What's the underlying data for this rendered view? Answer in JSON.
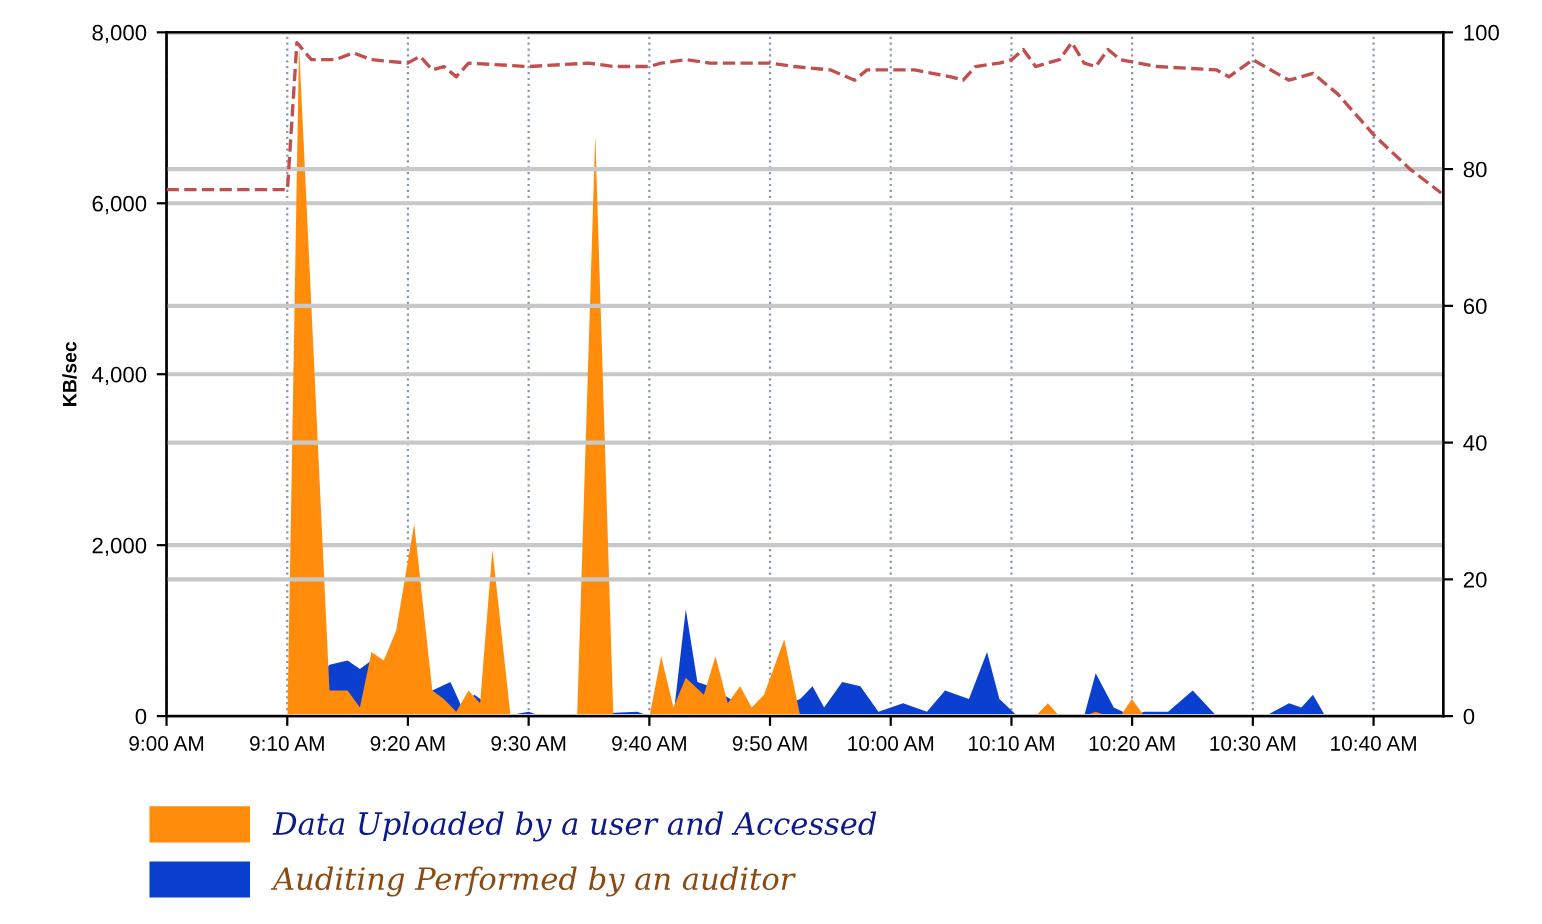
{
  "chart_data": {
    "type": "area",
    "ylabel": "KB/sec",
    "xlim": [
      9,
      10.763
    ],
    "xticks": [
      {
        "value": 9,
        "label": "9:00 AM"
      },
      {
        "value": 9.1667,
        "label": "9:10 AM"
      },
      {
        "value": 9.3333,
        "label": "9:20 AM"
      },
      {
        "value": 9.5,
        "label": "9:30 AM"
      },
      {
        "value": 9.6667,
        "label": "9:40 AM"
      },
      {
        "value": 9.8333,
        "label": "9:50 AM"
      },
      {
        "value": 10,
        "label": "10:00 AM"
      },
      {
        "value": 10.1667,
        "label": "10:10 AM"
      },
      {
        "value": 10.3333,
        "label": "10:20 AM"
      },
      {
        "value": 10.5,
        "label": "10:30 AM"
      },
      {
        "value": 10.6667,
        "label": "10:40 AM"
      }
    ],
    "ylim": [
      0,
      8000
    ],
    "yticks": [
      {
        "value": 0,
        "label": "0"
      },
      {
        "value": 2000,
        "label": "2,000"
      },
      {
        "value": 4000,
        "label": "4,000"
      },
      {
        "value": 6000,
        "label": "6,000"
      },
      {
        "value": 8000,
        "label": "8,000"
      }
    ],
    "y2lim": [
      0,
      100
    ],
    "y2ticks": [
      0,
      20,
      40,
      60,
      80,
      100
    ],
    "grid": true,
    "legend": "bottom left",
    "series": [
      {
        "name": "Auditing Performed by an auditor",
        "color": "#0a3fd0",
        "x": [
          9.167,
          9.225,
          9.25,
          9.267,
          9.283,
          9.367,
          9.392,
          9.408,
          9.425,
          9.467,
          9.5,
          9.517,
          9.65,
          9.667,
          9.7,
          9.717,
          9.733,
          9.75,
          9.817,
          9.875,
          9.892,
          9.908,
          9.933,
          9.958,
          9.983,
          10.017,
          10.05,
          10.075,
          10.108,
          10.133,
          10.15,
          10.175,
          10.267,
          10.283,
          10.308,
          10.333,
          10.35,
          10.383,
          10.417,
          10.45,
          10.517,
          10.55,
          10.567,
          10.583,
          10.6
        ],
        "values": [
          0,
          600,
          650,
          550,
          650,
          300,
          400,
          100,
          250,
          0,
          50,
          0,
          50,
          0,
          0,
          1250,
          400,
          350,
          0,
          200,
          350,
          100,
          400,
          350,
          50,
          150,
          50,
          300,
          200,
          750,
          200,
          0,
          0,
          500,
          100,
          0,
          50,
          50,
          300,
          0,
          0,
          150,
          100,
          250,
          0
        ]
      },
      {
        "name": "Data Uploaded by a user and Accessed",
        "color": "#ff8c0a",
        "x": [
          9.167,
          9.183,
          9.225,
          9.25,
          9.267,
          9.283,
          9.3,
          9.317,
          9.342,
          9.367,
          9.383,
          9.4,
          9.417,
          9.433,
          9.45,
          9.475,
          9.567,
          9.592,
          9.617,
          9.667,
          9.683,
          9.7,
          9.717,
          9.742,
          9.758,
          9.775,
          9.792,
          9.808,
          9.825,
          9.853,
          9.875,
          10.2,
          10.217,
          10.233,
          10.267,
          10.283,
          10.3,
          10.317,
          10.333,
          10.35
        ],
        "values": [
          0,
          7850,
          300,
          300,
          100,
          750,
          650,
          1000,
          2250,
          300,
          200,
          50,
          300,
          150,
          1950,
          0,
          0,
          6800,
          0,
          0,
          700,
          100,
          450,
          250,
          700,
          150,
          350,
          100,
          250,
          900,
          0,
          0,
          150,
          0,
          0,
          50,
          0,
          0,
          200,
          0
        ]
      },
      {
        "type": "line",
        "axis": "y2",
        "color": "#c0504d",
        "line_style": "dashed",
        "x": [
          9,
          9.167,
          9.18,
          9.2,
          9.233,
          9.258,
          9.283,
          9.333,
          9.35,
          9.367,
          9.383,
          9.4,
          9.417,
          9.5,
          9.583,
          9.617,
          9.667,
          9.683,
          9.717,
          9.75,
          9.833,
          9.867,
          9.917,
          9.95,
          9.967,
          10.033,
          10.083,
          10.1,
          10.117,
          10.15,
          10.167,
          10.183,
          10.2,
          10.233,
          10.25,
          10.267,
          10.283,
          10.3,
          10.317,
          10.367,
          10.45,
          10.467,
          10.5,
          10.533,
          10.55,
          10.583,
          10.617,
          10.667,
          10.717,
          10.76
        ],
        "values": [
          77,
          77,
          98.5,
          96,
          96,
          97,
          96,
          95.5,
          96.5,
          94.5,
          95,
          93.5,
          95.5,
          95,
          95.5,
          95,
          95,
          95.5,
          96,
          95.5,
          95.5,
          95,
          94.5,
          93,
          94.5,
          94.5,
          93.5,
          93,
          95,
          95.5,
          96,
          97.5,
          95,
          96,
          98.5,
          95.5,
          95,
          97.5,
          96,
          95,
          94.5,
          93.5,
          96,
          94,
          93,
          94,
          91,
          85,
          80,
          76.5
        ]
      }
    ]
  }
}
